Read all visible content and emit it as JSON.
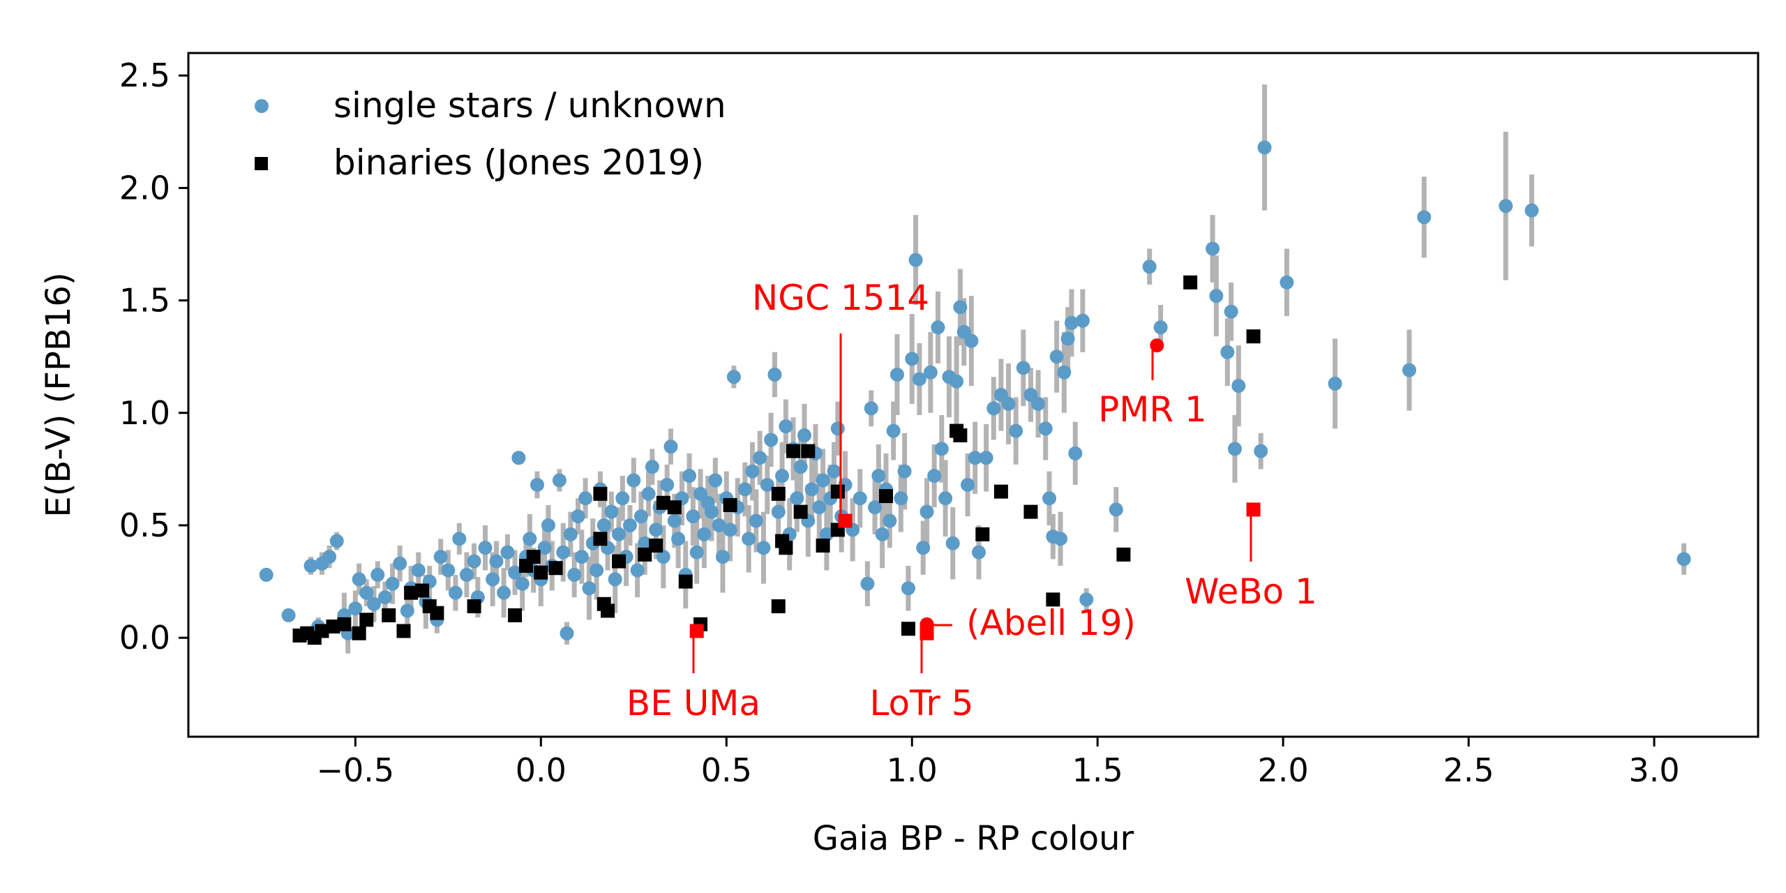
{
  "chart_data": {
    "type": "scatter",
    "xlabel": "Gaia BP - RP colour",
    "ylabel": "E(B-V) (FPB16)",
    "xlim": [
      -0.95,
      3.28
    ],
    "ylim": [
      -0.44,
      2.6
    ],
    "x_ticks": [
      -0.5,
      0.0,
      0.5,
      1.0,
      1.5,
      2.0,
      2.5,
      3.0
    ],
    "x_tick_labels": [
      "−0.5",
      "0.0",
      "0.5",
      "1.0",
      "1.5",
      "2.0",
      "2.5",
      "3.0"
    ],
    "y_ticks": [
      0.0,
      0.5,
      1.0,
      1.5,
      2.0,
      2.5
    ],
    "y_tick_labels": [
      "0.0",
      "0.5",
      "1.0",
      "1.5",
      "2.0",
      "2.5"
    ],
    "grid": false,
    "legend_position": "top-left",
    "colors": {
      "single": "#5b9bc8",
      "binary": "#000000",
      "highlight": "#ff0000",
      "errorbar": "#b3b3b3"
    },
    "series": [
      {
        "name": "single stars / unknown",
        "marker": "circle",
        "points": [
          [
            -0.74,
            0.28,
            0.03
          ],
          [
            -0.68,
            0.1,
            0.03
          ],
          [
            -0.62,
            0.32,
            0.04
          ],
          [
            -0.6,
            0.05,
            0.04
          ],
          [
            -0.59,
            0.33,
            0.05
          ],
          [
            -0.57,
            0.36,
            0.05
          ],
          [
            -0.55,
            0.43,
            0.04
          ],
          [
            -0.53,
            0.1,
            0.1
          ],
          [
            -0.52,
            0.02,
            0.09
          ],
          [
            -0.5,
            0.13,
            0.08
          ],
          [
            -0.49,
            0.26,
            0.07
          ],
          [
            -0.47,
            0.2,
            0.06
          ],
          [
            -0.45,
            0.15,
            0.08
          ],
          [
            -0.44,
            0.28,
            0.06
          ],
          [
            -0.42,
            0.18,
            0.07
          ],
          [
            -0.4,
            0.24,
            0.09
          ],
          [
            -0.38,
            0.33,
            0.08
          ],
          [
            -0.36,
            0.12,
            0.07
          ],
          [
            -0.35,
            0.22,
            0.1
          ],
          [
            -0.33,
            0.3,
            0.08
          ],
          [
            -0.31,
            0.16,
            0.12
          ],
          [
            -0.3,
            0.25,
            0.07
          ],
          [
            -0.28,
            0.08,
            0.06
          ],
          [
            -0.27,
            0.36,
            0.08
          ],
          [
            -0.25,
            0.3,
            0.09
          ],
          [
            -0.23,
            0.2,
            0.08
          ],
          [
            -0.22,
            0.44,
            0.07
          ],
          [
            -0.2,
            0.28,
            0.1
          ],
          [
            -0.18,
            0.34,
            0.08
          ],
          [
            -0.17,
            0.18,
            0.09
          ],
          [
            -0.15,
            0.4,
            0.1
          ],
          [
            -0.13,
            0.26,
            0.12
          ],
          [
            -0.12,
            0.34,
            0.09
          ],
          [
            -0.1,
            0.2,
            0.11
          ],
          [
            -0.09,
            0.38,
            0.08
          ],
          [
            -0.07,
            0.29,
            0.1
          ],
          [
            -0.06,
            0.8,
            0.03
          ],
          [
            -0.05,
            0.24,
            0.12
          ],
          [
            -0.04,
            0.36,
            0.09
          ],
          [
            -0.03,
            0.44,
            0.11
          ],
          [
            -0.02,
            0.3,
            0.1
          ],
          [
            -0.01,
            0.68,
            0.06
          ],
          [
            0.0,
            0.26,
            0.12
          ],
          [
            0.01,
            0.4,
            0.1
          ],
          [
            0.02,
            0.5,
            0.09
          ],
          [
            0.03,
            0.32,
            0.11
          ],
          [
            0.05,
            0.7,
            0.05
          ],
          [
            0.06,
            0.38,
            0.13
          ],
          [
            0.07,
            0.02,
            0.05
          ],
          [
            0.08,
            0.46,
            0.1
          ],
          [
            0.09,
            0.28,
            0.1
          ],
          [
            0.1,
            0.54,
            0.08
          ],
          [
            0.11,
            0.36,
            0.12
          ],
          [
            0.12,
            0.62,
            0.09
          ],
          [
            0.13,
            0.22,
            0.14
          ],
          [
            0.14,
            0.42,
            0.11
          ],
          [
            0.15,
            0.3,
            0.13
          ],
          [
            0.16,
            0.66,
            0.08
          ],
          [
            0.17,
            0.5,
            0.12
          ],
          [
            0.18,
            0.4,
            0.1
          ],
          [
            0.19,
            0.56,
            0.09
          ],
          [
            0.2,
            0.26,
            0.15
          ],
          [
            0.21,
            0.46,
            0.12
          ],
          [
            0.22,
            0.62,
            0.1
          ],
          [
            0.23,
            0.36,
            0.13
          ],
          [
            0.24,
            0.5,
            0.09
          ],
          [
            0.25,
            0.7,
            0.1
          ],
          [
            0.26,
            0.3,
            0.12
          ],
          [
            0.27,
            0.54,
            0.11
          ],
          [
            0.28,
            0.42,
            0.14
          ],
          [
            0.29,
            0.64,
            0.1
          ],
          [
            0.3,
            0.76,
            0.08
          ],
          [
            0.31,
            0.48,
            0.13
          ],
          [
            0.32,
            0.58,
            0.12
          ],
          [
            0.33,
            0.36,
            0.14
          ],
          [
            0.34,
            0.68,
            0.09
          ],
          [
            0.35,
            0.85,
            0.08
          ],
          [
            0.36,
            0.52,
            0.12
          ],
          [
            0.37,
            0.44,
            0.13
          ],
          [
            0.38,
            0.62,
            0.12
          ],
          [
            0.39,
            0.28,
            0.15
          ],
          [
            0.4,
            0.72,
            0.1
          ],
          [
            0.41,
            0.54,
            0.13
          ],
          [
            0.42,
            0.38,
            0.14
          ],
          [
            0.43,
            0.64,
            0.11
          ],
          [
            0.44,
            0.46,
            0.15
          ],
          [
            0.45,
            0.6,
            0.12
          ],
          [
            0.46,
            0.56,
            0.13
          ],
          [
            0.47,
            0.7,
            0.1
          ],
          [
            0.48,
            0.5,
            0.14
          ],
          [
            0.49,
            0.36,
            0.16
          ],
          [
            0.5,
            0.62,
            0.12
          ],
          [
            0.51,
            0.48,
            0.14
          ],
          [
            0.52,
            1.16,
            0.05
          ],
          [
            0.53,
            0.58,
            0.13
          ],
          [
            0.55,
            0.66,
            0.12
          ],
          [
            0.56,
            0.44,
            0.15
          ],
          [
            0.57,
            0.74,
            0.13
          ],
          [
            0.58,
            0.52,
            0.14
          ],
          [
            0.59,
            0.8,
            0.12
          ],
          [
            0.6,
            0.4,
            0.16
          ],
          [
            0.61,
            0.68,
            0.13
          ],
          [
            0.62,
            0.88,
            0.12
          ],
          [
            0.63,
            1.17,
            0.1
          ],
          [
            0.64,
            0.56,
            0.14
          ],
          [
            0.65,
            0.72,
            0.15
          ],
          [
            0.66,
            0.94,
            0.12
          ],
          [
            0.67,
            0.46,
            0.16
          ],
          [
            0.68,
            0.84,
            0.14
          ],
          [
            0.69,
            0.62,
            0.15
          ],
          [
            0.7,
            0.76,
            0.13
          ],
          [
            0.71,
            0.9,
            0.14
          ],
          [
            0.72,
            0.52,
            0.16
          ],
          [
            0.73,
            0.66,
            0.15
          ],
          [
            0.74,
            0.82,
            0.13
          ],
          [
            0.75,
            0.58,
            0.15
          ],
          [
            0.76,
            0.7,
            0.14
          ],
          [
            0.77,
            0.46,
            0.16
          ],
          [
            0.78,
            0.62,
            0.15
          ],
          [
            0.79,
            0.74,
            0.13
          ],
          [
            0.8,
            0.93,
            0.12
          ],
          [
            0.81,
            0.54,
            0.16
          ],
          [
            0.82,
            0.68,
            0.15
          ],
          [
            0.84,
            0.48,
            0.14
          ],
          [
            0.86,
            0.62,
            0.13
          ],
          [
            0.88,
            0.24,
            0.1
          ],
          [
            0.89,
            1.02,
            0.08
          ],
          [
            0.9,
            0.58,
            0.12
          ],
          [
            0.91,
            0.72,
            0.14
          ],
          [
            0.92,
            0.46,
            0.15
          ],
          [
            0.93,
            0.66,
            0.16
          ],
          [
            0.94,
            0.52,
            0.12
          ],
          [
            0.95,
            0.92,
            0.13
          ],
          [
            0.96,
            1.17,
            0.18
          ],
          [
            0.97,
            0.62,
            0.15
          ],
          [
            0.98,
            0.74,
            0.17
          ],
          [
            0.99,
            0.22,
            0.1
          ],
          [
            1.0,
            1.24,
            0.2
          ],
          [
            1.01,
            1.68,
            0.2
          ],
          [
            1.02,
            1.15,
            0.16
          ],
          [
            1.03,
            0.4,
            0.12
          ],
          [
            1.04,
            0.56,
            0.15
          ],
          [
            1.05,
            1.18,
            0.18
          ],
          [
            1.06,
            0.72,
            0.14
          ],
          [
            1.07,
            1.38,
            0.16
          ],
          [
            1.08,
            0.84,
            0.15
          ],
          [
            1.09,
            0.62,
            0.17
          ],
          [
            1.1,
            1.16,
            0.18
          ],
          [
            1.11,
            0.42,
            0.16
          ],
          [
            1.12,
            1.14,
            0.2
          ],
          [
            1.13,
            1.47,
            0.17
          ],
          [
            1.14,
            1.36,
            0.15
          ],
          [
            1.15,
            0.68,
            0.14
          ],
          [
            1.16,
            1.32,
            0.2
          ],
          [
            1.17,
            0.8,
            0.16
          ],
          [
            1.18,
            0.38,
            0.12
          ],
          [
            1.2,
            0.8,
            0.15
          ],
          [
            1.22,
            1.02,
            0.14
          ],
          [
            1.24,
            1.08,
            0.16
          ],
          [
            1.26,
            1.04,
            0.18
          ],
          [
            1.28,
            0.92,
            0.15
          ],
          [
            1.3,
            1.2,
            0.17
          ],
          [
            1.32,
            1.08,
            0.12
          ],
          [
            1.34,
            1.04,
            0.15
          ],
          [
            1.36,
            0.93,
            0.14
          ],
          [
            1.37,
            0.62,
            0.12
          ],
          [
            1.38,
            0.45,
            0.1
          ],
          [
            1.39,
            1.25,
            0.16
          ],
          [
            1.4,
            0.44,
            0.12
          ],
          [
            1.41,
            1.18,
            0.18
          ],
          [
            1.42,
            1.33,
            0.14
          ],
          [
            1.43,
            1.4,
            0.15
          ],
          [
            1.44,
            0.82,
            0.14
          ],
          [
            1.46,
            1.41,
            0.14
          ],
          [
            1.47,
            0.17,
            0.05
          ],
          [
            1.55,
            0.57,
            0.1
          ],
          [
            1.64,
            1.65,
            0.08
          ],
          [
            1.67,
            1.38,
            0.1
          ],
          [
            1.81,
            1.73,
            0.15
          ],
          [
            1.82,
            1.52,
            0.18
          ],
          [
            1.85,
            1.27,
            0.15
          ],
          [
            1.86,
            1.45,
            0.13
          ],
          [
            1.87,
            0.84,
            0.15
          ],
          [
            1.88,
            1.12,
            0.18
          ],
          [
            1.94,
            0.83,
            0.08
          ],
          [
            1.95,
            2.18,
            0.28
          ],
          [
            2.01,
            1.58,
            0.15
          ],
          [
            2.14,
            1.13,
            0.2
          ],
          [
            2.34,
            1.19,
            0.18
          ],
          [
            2.38,
            1.87,
            0.18
          ],
          [
            2.6,
            1.92,
            0.33
          ],
          [
            2.67,
            1.9,
            0.16
          ],
          [
            3.08,
            0.35,
            0.07
          ]
        ]
      },
      {
        "name": "binaries (Jones 2019)",
        "marker": "square",
        "points": [
          [
            -0.65,
            0.01
          ],
          [
            -0.63,
            0.02
          ],
          [
            -0.61,
            0.0
          ],
          [
            -0.59,
            0.03
          ],
          [
            -0.56,
            0.05
          ],
          [
            -0.53,
            0.06
          ],
          [
            -0.49,
            0.02
          ],
          [
            -0.47,
            0.08
          ],
          [
            -0.41,
            0.1
          ],
          [
            -0.37,
            0.03
          ],
          [
            -0.35,
            0.2
          ],
          [
            -0.32,
            0.21
          ],
          [
            -0.3,
            0.14
          ],
          [
            -0.28,
            0.11
          ],
          [
            -0.18,
            0.14
          ],
          [
            -0.07,
            0.1
          ],
          [
            -0.04,
            0.32
          ],
          [
            -0.02,
            0.36
          ],
          [
            0.0,
            0.29
          ],
          [
            0.04,
            0.31
          ],
          [
            0.16,
            0.64
          ],
          [
            0.16,
            0.44
          ],
          [
            0.17,
            0.15
          ],
          [
            0.18,
            0.12
          ],
          [
            0.21,
            0.34
          ],
          [
            0.28,
            0.37
          ],
          [
            0.31,
            0.41
          ],
          [
            0.33,
            0.6
          ],
          [
            0.36,
            0.58
          ],
          [
            0.39,
            0.25
          ],
          [
            0.43,
            0.06
          ],
          [
            0.51,
            0.59
          ],
          [
            0.64,
            0.64
          ],
          [
            0.64,
            0.14
          ],
          [
            0.65,
            0.43
          ],
          [
            0.66,
            0.4
          ],
          [
            0.68,
            0.83
          ],
          [
            0.7,
            0.56
          ],
          [
            0.72,
            0.83
          ],
          [
            0.76,
            0.41
          ],
          [
            0.8,
            0.48
          ],
          [
            0.8,
            0.65
          ],
          [
            0.93,
            0.63
          ],
          [
            0.99,
            0.04
          ],
          [
            1.12,
            0.92
          ],
          [
            1.13,
            0.9
          ],
          [
            1.19,
            0.46
          ],
          [
            1.24,
            0.65
          ],
          [
            1.32,
            0.56
          ],
          [
            1.38,
            0.17
          ],
          [
            1.57,
            0.37
          ],
          [
            1.75,
            1.58
          ],
          [
            1.92,
            1.34
          ]
        ]
      }
    ],
    "highlighted": [
      {
        "label": "NGC 1514",
        "x": 0.82,
        "y": 0.52,
        "marker": "square"
      },
      {
        "label": "PMR 1",
        "x": 1.66,
        "y": 1.3,
        "marker": "circle"
      },
      {
        "label": "WeBo 1",
        "x": 1.92,
        "y": 0.57,
        "marker": "square"
      },
      {
        "label": "BE UMa",
        "x": 0.42,
        "y": 0.03,
        "marker": "square"
      },
      {
        "label": "LoTr 5",
        "x": 1.04,
        "y": 0.02,
        "marker": "square"
      },
      {
        "label": "(Abell 19)",
        "x": 1.04,
        "y": 0.06,
        "marker": "circle"
      }
    ]
  }
}
